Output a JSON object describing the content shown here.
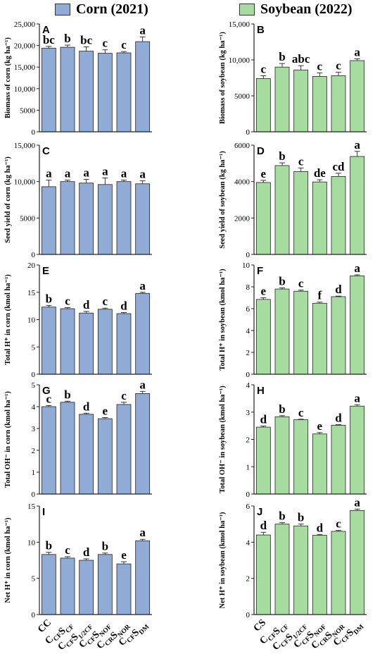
{
  "legend": {
    "corn_label": "Corn (2021)",
    "soy_label": "Soybean (2022)",
    "corn_color": "#8fabd6",
    "soy_color": "#a6dca0"
  },
  "x_groups": {
    "corn": [
      "CC",
      "CCFSCF",
      "CCFS1/2CF",
      "CCFSNOF",
      "CCRSNOR",
      "CCFSDM"
    ],
    "soy": [
      "CS",
      "CCFSCF",
      "CCFS1/2CF",
      "CCFSNOF",
      "CCRSNOR",
      "CCFSDM"
    ]
  },
  "chart_data": [
    {
      "panel": "A",
      "type": "bar",
      "crop": "corn",
      "ylabel": "Biomass of corn (kg ha⁻¹)",
      "ylim": [
        0,
        25000
      ],
      "yticks": [
        "0",
        "5000",
        "10,000",
        "15,000",
        "20,000",
        "25,000"
      ],
      "values": [
        19400,
        19600,
        18700,
        18200,
        18300,
        20900
      ],
      "errors": [
        400,
        500,
        1000,
        800,
        300,
        1100
      ],
      "letters": [
        "bc",
        "b",
        "bc",
        "c",
        "c",
        "a"
      ]
    },
    {
      "panel": "B",
      "type": "bar",
      "crop": "soy",
      "ylabel": "Biomass of  soybean (kg ha⁻¹)",
      "ylim": [
        0,
        15000
      ],
      "yticks": [
        "0",
        "5000",
        "10,000",
        "15,000"
      ],
      "values": [
        7400,
        9000,
        8600,
        7700,
        7800,
        9900
      ],
      "errors": [
        400,
        500,
        600,
        500,
        500,
        250
      ],
      "letters": [
        "c",
        "b",
        "abc",
        "c",
        "c",
        "a"
      ]
    },
    {
      "panel": "C",
      "type": "bar",
      "crop": "corn",
      "ylabel": "Seed yield of corn (kg ha⁻¹)",
      "ylim": [
        0,
        15000
      ],
      "yticks": [
        "0",
        "5000",
        "10,000",
        "15,000"
      ],
      "values": [
        9300,
        10000,
        9800,
        9600,
        10000,
        9700
      ],
      "errors": [
        900,
        200,
        500,
        900,
        200,
        400
      ],
      "letters": [
        "a",
        "a",
        "a",
        "a",
        "a",
        "a"
      ]
    },
    {
      "panel": "D",
      "type": "bar",
      "crop": "soy",
      "ylabel": "Seed yield of soybean (kg ha⁻¹)",
      "ylim": [
        0,
        6000
      ],
      "yticks": [
        "0",
        "2000",
        "4000",
        "6000"
      ],
      "values": [
        3950,
        4880,
        4550,
        3980,
        4280,
        5380
      ],
      "errors": [
        120,
        150,
        200,
        120,
        180,
        280
      ],
      "letters": [
        "e",
        "b",
        "c",
        "de",
        "cd",
        "a"
      ]
    },
    {
      "panel": "E",
      "type": "bar",
      "crop": "corn",
      "ylabel": "Total H⁺ in corn (kmol ha⁻¹)",
      "ylim": [
        0,
        20
      ],
      "yticks": [
        "0",
        "5",
        "10",
        "15",
        "20"
      ],
      "values": [
        12.3,
        12.0,
        11.2,
        11.9,
        11.1,
        14.8
      ],
      "errors": [
        0.3,
        0.2,
        0.3,
        0.2,
        0.2,
        0.2
      ],
      "letters": [
        "b",
        "c",
        "d",
        "c",
        "d",
        "a"
      ]
    },
    {
      "panel": "F",
      "type": "bar",
      "crop": "soy",
      "ylabel": "Total H⁺ in soybean (kmol ha⁻¹)",
      "ylim": [
        0,
        10
      ],
      "yticks": [
        "0",
        "2",
        "4",
        "6",
        "8",
        "10"
      ],
      "values": [
        6.85,
        7.8,
        7.6,
        6.5,
        7.1,
        9.0
      ],
      "errors": [
        0.15,
        0.1,
        0.1,
        0.1,
        0.05,
        0.1
      ],
      "letters": [
        "e",
        "b",
        "c",
        "f",
        "d",
        "a"
      ]
    },
    {
      "panel": "G",
      "type": "bar",
      "crop": "corn",
      "ylabel": "Total OH⁻ in corn (kmol ha⁻¹)",
      "ylim": [
        0,
        5
      ],
      "yticks": [
        "0",
        "1",
        "2",
        "3",
        "4",
        "5"
      ],
      "values": [
        4.0,
        4.2,
        3.65,
        3.45,
        4.1,
        4.6
      ],
      "errors": [
        0.05,
        0.05,
        0.05,
        0.05,
        0.1,
        0.1
      ],
      "letters": [
        "c",
        "b",
        "d",
        "e",
        "c",
        "a"
      ]
    },
    {
      "panel": "H",
      "type": "bar",
      "crop": "soy",
      "ylabel": "Total OH⁻ in soybean (kmol ha⁻¹)",
      "ylim": [
        0,
        4
      ],
      "yticks": [
        "0",
        "1",
        "2",
        "3",
        "4"
      ],
      "values": [
        2.45,
        2.83,
        2.72,
        2.2,
        2.52,
        3.22
      ],
      "errors": [
        0.04,
        0.04,
        0.02,
        0.05,
        0.02,
        0.05
      ],
      "letters": [
        "d",
        "b",
        "c",
        "e",
        "d",
        "a"
      ]
    },
    {
      "panel": "I",
      "type": "bar",
      "crop": "corn",
      "ylabel": "Net H⁺ in corn (kmol ha⁻¹)",
      "ylim": [
        0,
        15
      ],
      "yticks": [
        "0",
        "5",
        "10",
        "15"
      ],
      "values": [
        8.3,
        7.8,
        7.5,
        8.3,
        7.0,
        10.2
      ],
      "errors": [
        0.3,
        0.2,
        0.2,
        0.2,
        0.3,
        0.2
      ],
      "letters": [
        "b",
        "c",
        "d",
        "b",
        "e",
        "a"
      ]
    },
    {
      "panel": "J",
      "type": "bar",
      "crop": "soy",
      "ylabel": "Net H⁺ in soybean (kmol ha⁻¹)",
      "ylim": [
        0,
        6
      ],
      "yticks": [
        "0",
        "2",
        "4",
        "6"
      ],
      "values": [
        4.4,
        5.0,
        4.9,
        4.38,
        4.6,
        5.75
      ],
      "errors": [
        0.15,
        0.08,
        0.1,
        0.05,
        0.05,
        0.08
      ],
      "letters": [
        "d",
        "b",
        "b",
        "d",
        "c",
        "a"
      ]
    }
  ]
}
